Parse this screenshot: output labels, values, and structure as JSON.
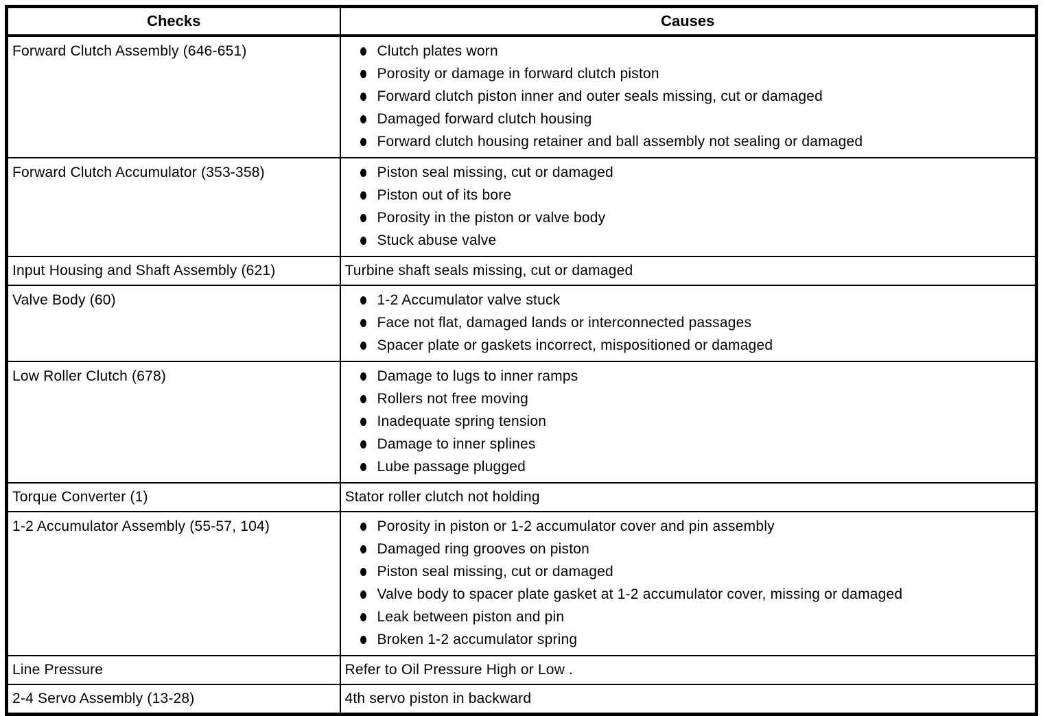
{
  "table": {
    "header": {
      "checks": "Checks",
      "causes": "Causes"
    },
    "rows": [
      {
        "check": "Forward Clutch Assembly (646-651)",
        "bulleted": true,
        "causes": [
          "Clutch plates worn",
          "Porosity or damage in forward clutch piston",
          "Forward clutch piston inner and outer seals missing, cut or damaged",
          "Damaged forward clutch housing",
          "Forward clutch housing retainer and ball assembly not sealing or damaged"
        ]
      },
      {
        "check": "Forward Clutch Accumulator (353-358)",
        "bulleted": true,
        "causes": [
          "Piston seal missing, cut or damaged",
          "Piston out of its bore",
          "Porosity in the piston or valve body",
          "Stuck abuse valve"
        ]
      },
      {
        "check": "Input Housing and Shaft Assembly (621)",
        "bulleted": false,
        "causes": [
          "Turbine shaft seals missing, cut or damaged"
        ]
      },
      {
        "check": "Valve Body (60)",
        "bulleted": true,
        "causes": [
          "1-2 Accumulator valve stuck",
          "Face not flat, damaged lands or interconnected passages",
          "Spacer plate or gaskets incorrect, mispositioned or damaged"
        ]
      },
      {
        "check": "Low Roller Clutch (678)",
        "bulleted": true,
        "causes": [
          "Damage to lugs to inner ramps",
          "Rollers not free moving",
          "Inadequate spring tension",
          "Damage to inner splines",
          "Lube passage plugged"
        ]
      },
      {
        "check": "Torque Converter (1)",
        "bulleted": false,
        "causes": [
          "Stator roller clutch not holding"
        ]
      },
      {
        "check": "1-2 Accumulator Assembly (55-57, 104)",
        "bulleted": true,
        "causes": [
          "Porosity in piston or 1-2 accumulator cover and pin assembly",
          "Damaged ring grooves on piston",
          "Piston seal missing, cut or damaged",
          "Valve body to spacer plate gasket at 1-2 accumulator cover, missing or damaged",
          "Leak between piston and pin",
          "Broken 1-2 accumulator spring"
        ]
      },
      {
        "check": "Line Pressure",
        "bulleted": false,
        "causes": [
          "Refer to Oil Pressure High or Low ."
        ]
      },
      {
        "check": "2-4 Servo Assembly (13-28)",
        "bulleted": false,
        "causes": [
          "4th servo piston in backward"
        ]
      }
    ]
  }
}
